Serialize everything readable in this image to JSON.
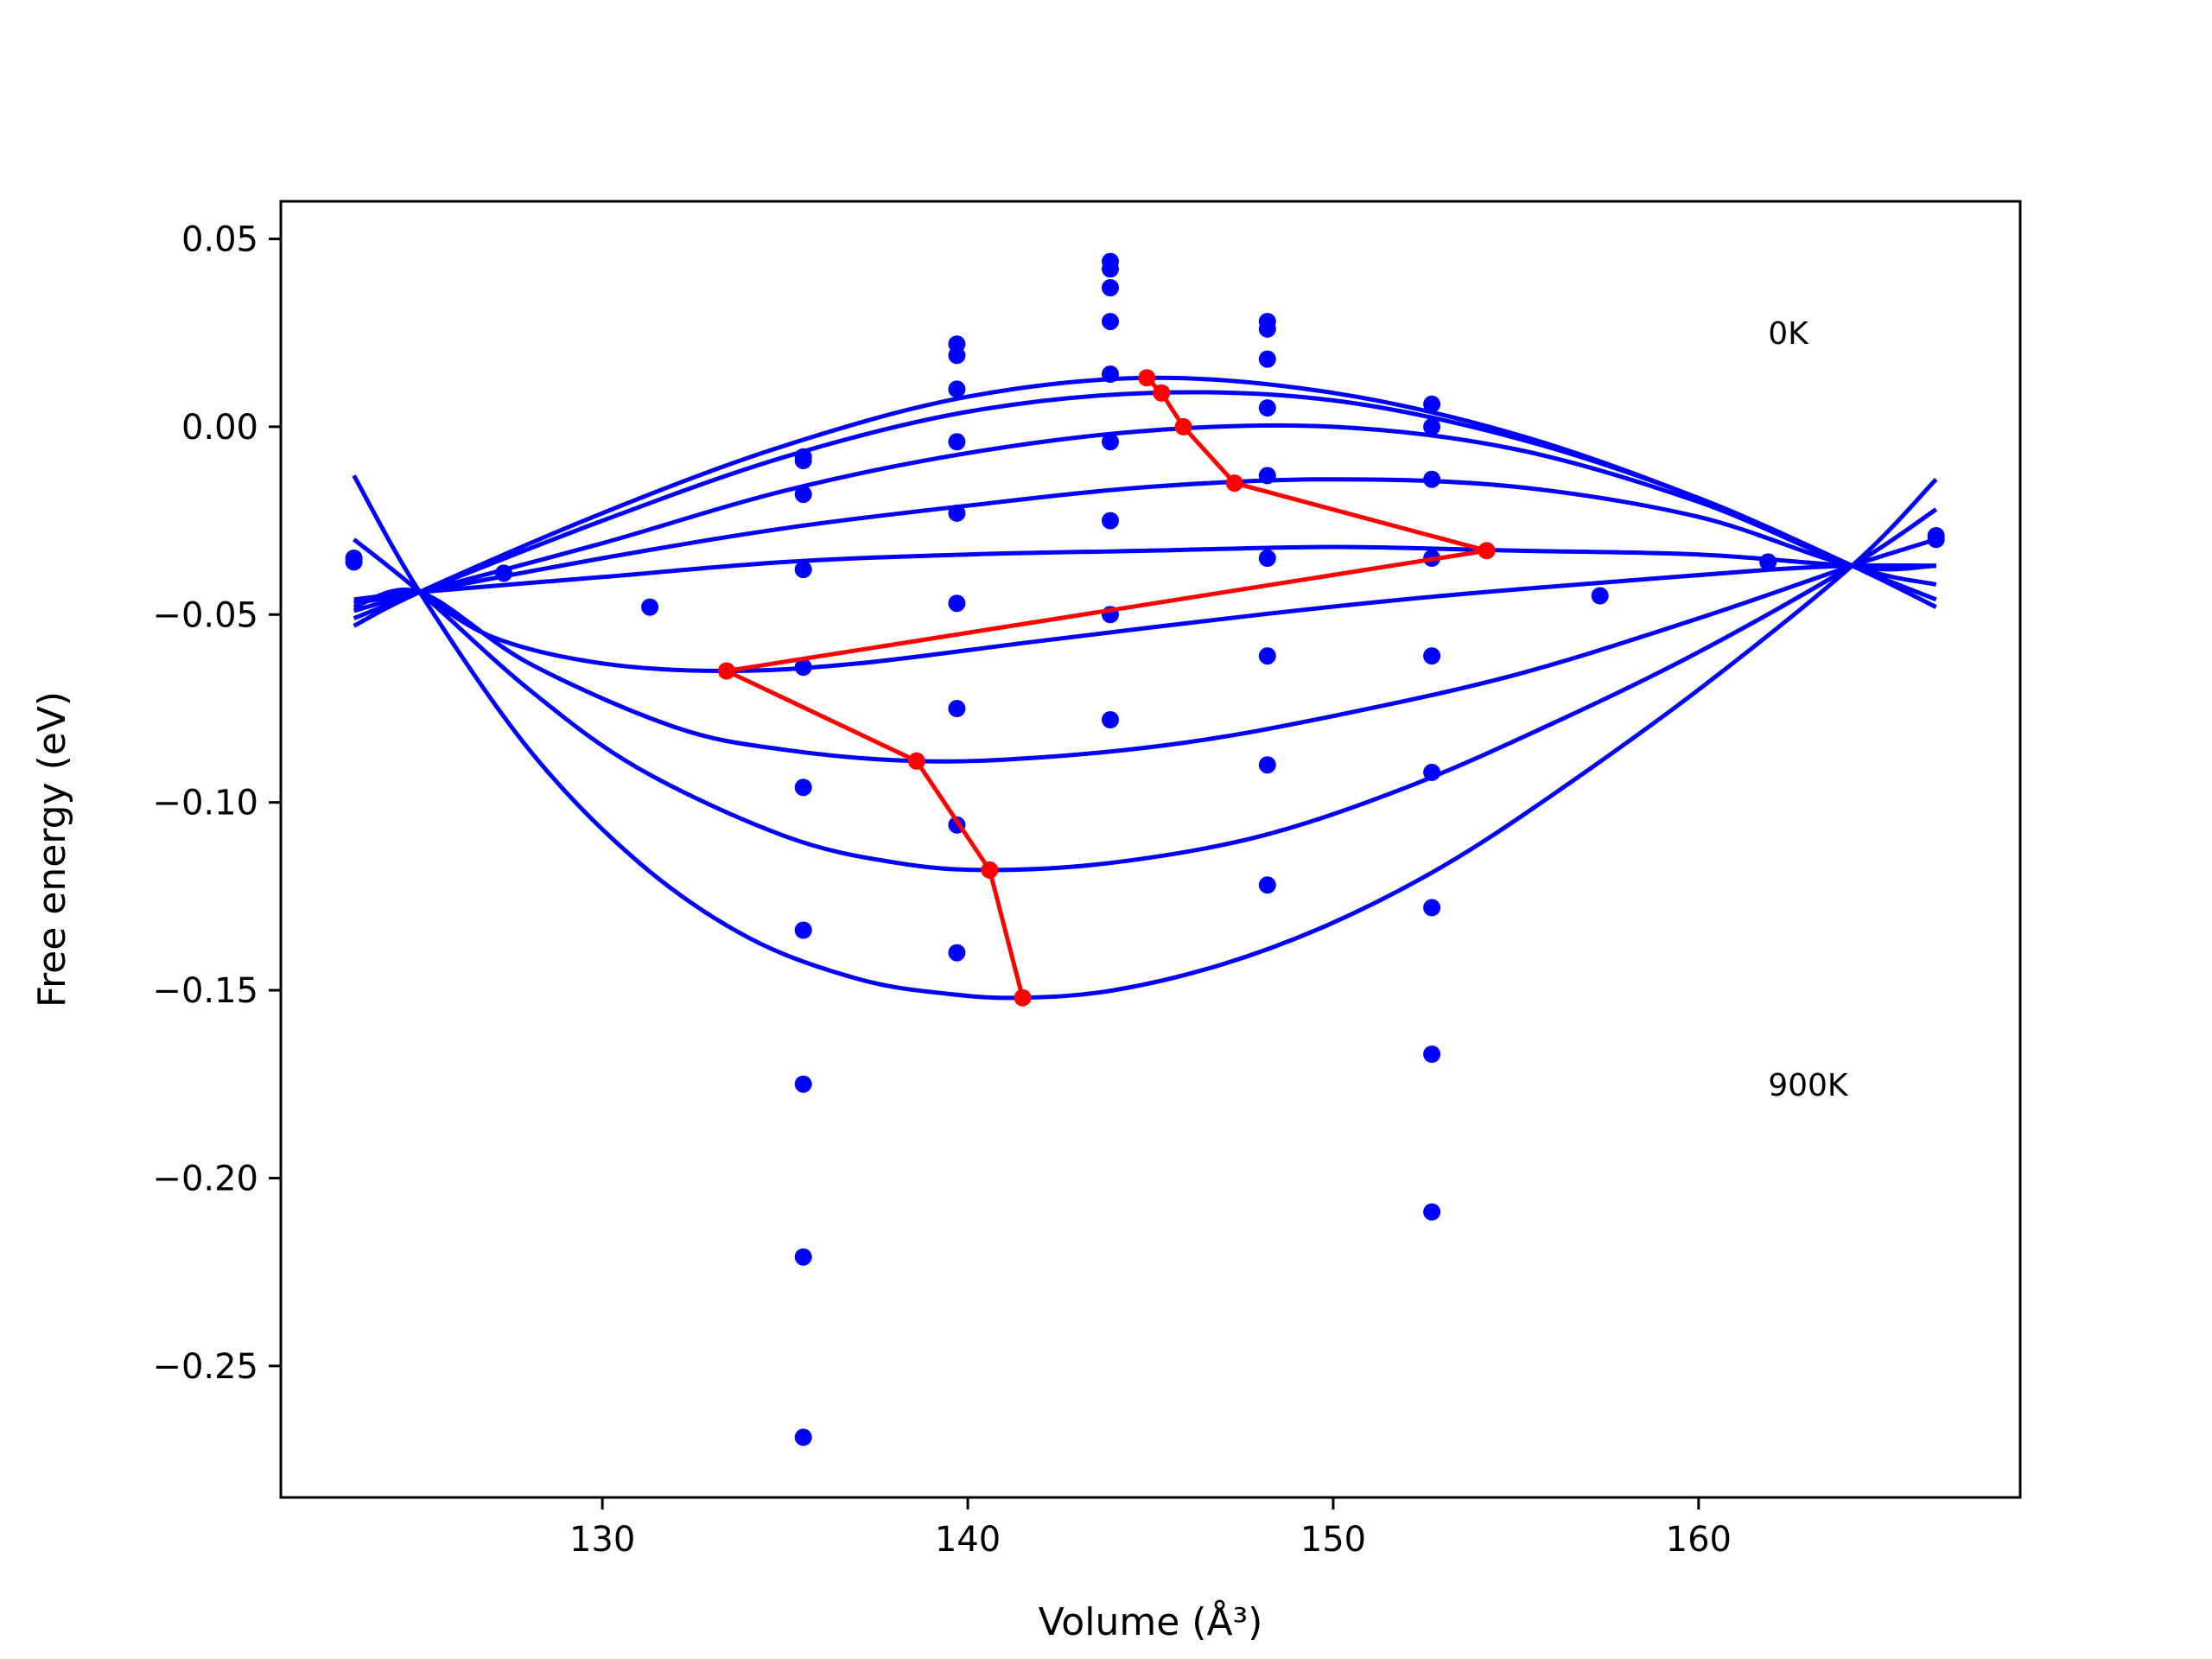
{
  "chart_data": {
    "type": "line",
    "xlabel": "Volume",
    "xlabel_unit": "(Å³)",
    "ylabel": "Free energy (eV)",
    "xlim": [
      121.2,
      168.8
    ],
    "ylim": [
      -0.285,
      0.06
    ],
    "x_ticks": [
      130,
      140,
      150,
      160
    ],
    "x_tick_labels": [
      "130",
      "140",
      "150",
      "160"
    ],
    "y_ticks": [
      0.05,
      0.0,
      -0.05,
      -0.1,
      -0.15,
      -0.2,
      -0.25
    ],
    "y_tick_labels": [
      "0.05",
      "0.00",
      "−0.05",
      "−0.10",
      "−0.15",
      "−0.20",
      "−0.25"
    ],
    "grid": false,
    "legend": "none",
    "colors": {
      "curves": "#0000ff",
      "points": "#0000ff",
      "minima": "#ff0000",
      "axes": "#000000"
    },
    "annotations": [
      {
        "text": "0K",
        "x": 161.9,
        "y": 0.022
      },
      {
        "text": "900K",
        "x": 161.9,
        "y": -0.178
      }
    ],
    "curves": [
      {
        "x": [
          123.2,
          125.0,
          130.0,
          135.0,
          140.0,
          145.0,
          150.0,
          155.0,
          160.0,
          164.2,
          166.5
        ],
        "y": [
          -0.053,
          -0.044,
          -0.023,
          -0.005,
          0.008,
          0.013,
          0.009,
          -0.002,
          -0.019,
          -0.037,
          -0.048
        ]
      },
      {
        "x": [
          123.2,
          125.0,
          130.0,
          135.0,
          140.0,
          145.0,
          150.0,
          155.0,
          160.0,
          164.2,
          166.5
        ],
        "y": [
          -0.051,
          -0.044,
          -0.025,
          -0.008,
          0.004,
          0.009,
          0.007,
          -0.003,
          -0.019,
          -0.037,
          -0.046
        ]
      },
      {
        "x": [
          123.2,
          125.0,
          130.0,
          135.0,
          140.0,
          145.0,
          150.0,
          155.0,
          160.0,
          164.2,
          166.5
        ],
        "y": [
          -0.049,
          -0.044,
          -0.031,
          -0.017,
          -0.007,
          -0.001,
          0.0,
          -0.006,
          -0.02,
          -0.037,
          -0.042
        ]
      },
      {
        "x": [
          123.2,
          125.0,
          130.0,
          135.0,
          140.0,
          145.0,
          150.0,
          155.0,
          160.0,
          164.2,
          166.5
        ],
        "y": [
          -0.047,
          -0.044,
          -0.035,
          -0.027,
          -0.021,
          -0.016,
          -0.014,
          -0.016,
          -0.024,
          -0.037,
          -0.037
        ]
      },
      {
        "x": [
          123.2,
          125.0,
          130.0,
          135.0,
          140.0,
          145.0,
          150.0,
          155.0,
          160.0,
          164.2,
          166.5
        ],
        "y": [
          -0.046,
          -0.044,
          -0.04,
          -0.036,
          -0.034,
          -0.033,
          -0.032,
          -0.033,
          -0.034,
          -0.037,
          -0.037
        ]
      },
      {
        "x": [
          125.0,
          127.0,
          130.0,
          133.4,
          137.0,
          142.0,
          148.0,
          153.0,
          158.0,
          162.0,
          164.2,
          166.5
        ],
        "y": [
          -0.044,
          -0.056,
          -0.063,
          -0.065,
          -0.063,
          -0.057,
          -0.05,
          -0.045,
          -0.041,
          -0.038,
          -0.037,
          -0.037
        ]
      },
      {
        "x": [
          123.2,
          125.0,
          128.0,
          132.0,
          135.0,
          138.6,
          142.0,
          146.0,
          150.0,
          155.0,
          160.0,
          164.2,
          166.5
        ],
        "y": [
          -0.048,
          -0.044,
          -0.063,
          -0.08,
          -0.086,
          -0.089,
          -0.088,
          -0.084,
          -0.077,
          -0.066,
          -0.051,
          -0.037,
          -0.03
        ]
      },
      {
        "x": [
          123.2,
          125.0,
          128.0,
          131.0,
          135.0,
          138.0,
          140.6,
          144.0,
          148.0,
          152.0,
          156.0,
          160.0,
          164.2,
          166.5
        ],
        "y": [
          -0.03,
          -0.044,
          -0.07,
          -0.091,
          -0.109,
          -0.116,
          -0.118,
          -0.116,
          -0.109,
          -0.096,
          -0.079,
          -0.06,
          -0.037,
          -0.022
        ]
      },
      {
        "x": [
          123.2,
          125.0,
          128.0,
          131.0,
          134.0,
          137.0,
          139.5,
          141.5,
          144.0,
          147.0,
          150.0,
          153.0,
          156.0,
          160.0,
          164.2,
          166.5
        ],
        "y": [
          -0.013,
          -0.044,
          -0.086,
          -0.116,
          -0.136,
          -0.147,
          -0.151,
          -0.152,
          -0.15,
          -0.143,
          -0.132,
          -0.117,
          -0.098,
          -0.07,
          -0.037,
          -0.014
        ]
      }
    ],
    "minima": {
      "x": [
        144.9,
        145.3,
        145.9,
        147.3,
        154.2,
        133.4,
        138.6,
        140.6,
        141.5
      ],
      "y": [
        0.013,
        0.009,
        0.0,
        -0.015,
        -0.033,
        -0.065,
        -0.089,
        -0.118,
        -0.152
      ]
    },
    "points": {
      "x": [
        123.2,
        123.2,
        127.3,
        131.3,
        135.5,
        135.5,
        135.5,
        135.5,
        135.5,
        135.5,
        135.5,
        135.5,
        135.5,
        135.5,
        139.7,
        139.7,
        139.7,
        139.7,
        139.7,
        139.7,
        139.7,
        139.7,
        139.7,
        143.9,
        143.9,
        143.9,
        143.9,
        143.9,
        143.9,
        143.9,
        143.9,
        143.9,
        148.2,
        148.2,
        148.2,
        148.2,
        148.2,
        148.2,
        148.2,
        148.2,
        148.2,
        152.7,
        152.7,
        152.7,
        152.7,
        152.7,
        152.7,
        152.7,
        152.7,
        152.7,
        157.3,
        161.9,
        166.5,
        166.5
      ],
      "y": [
        -0.035,
        -0.036,
        -0.039,
        -0.048,
        -0.008,
        -0.009,
        -0.018,
        -0.038,
        -0.064,
        -0.096,
        -0.134,
        -0.175,
        -0.221,
        -0.269,
        0.022,
        0.019,
        0.01,
        -0.004,
        -0.023,
        -0.047,
        -0.075,
        -0.106,
        -0.14,
        0.044,
        0.042,
        0.037,
        0.028,
        0.014,
        -0.004,
        -0.025,
        -0.05,
        -0.078,
        0.028,
        0.026,
        0.018,
        0.005,
        -0.013,
        -0.035,
        -0.061,
        -0.09,
        -0.122,
        0.006,
        0.0,
        -0.014,
        -0.035,
        -0.061,
        -0.092,
        -0.128,
        -0.167,
        -0.209,
        -0.045,
        -0.036,
        -0.03,
        -0.029
      ]
    }
  }
}
